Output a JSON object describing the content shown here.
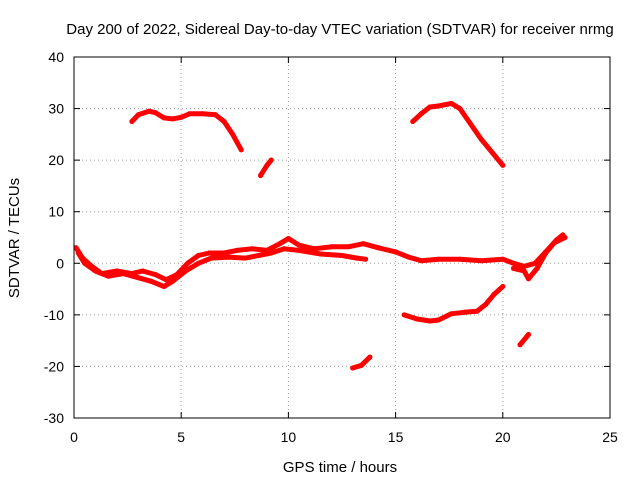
{
  "chart_data": {
    "type": "scatter",
    "title": "Day 200 of 2022, Sidereal Day-to-day VTEC variation (SDTVAR) for receiver nrmg",
    "xlabel": "GPS time / hours",
    "ylabel": "SDTVAR / TECUs",
    "xlim": [
      0,
      25
    ],
    "ylim": [
      -30,
      40
    ],
    "xticks": [
      0,
      5,
      10,
      15,
      20,
      25
    ],
    "yticks": [
      -30,
      -20,
      -10,
      0,
      10,
      20,
      30,
      40
    ],
    "grid": true,
    "color": "#ff0000",
    "series": [
      {
        "name": "arc-upper-early",
        "points": [
          [
            2.7,
            27.5
          ],
          [
            3.0,
            28.8
          ],
          [
            3.5,
            29.5
          ],
          [
            3.8,
            29.2
          ],
          [
            4.2,
            28.2
          ],
          [
            4.6,
            28.0
          ],
          [
            5.0,
            28.3
          ],
          [
            5.4,
            29.0
          ],
          [
            6.0,
            29.0
          ],
          [
            6.6,
            28.8
          ],
          [
            7.0,
            27.5
          ],
          [
            7.4,
            25.0
          ],
          [
            7.8,
            22.0
          ]
        ]
      },
      {
        "name": "arc-upper-early-b",
        "points": [
          [
            8.7,
            17.0
          ],
          [
            9.0,
            19.0
          ],
          [
            9.2,
            20.0
          ]
        ]
      },
      {
        "name": "arc-upper-late",
        "points": [
          [
            15.8,
            27.5
          ],
          [
            16.2,
            29.0
          ],
          [
            16.6,
            30.3
          ],
          [
            17.0,
            30.5
          ],
          [
            17.6,
            31.0
          ],
          [
            18.0,
            30.0
          ],
          [
            18.5,
            27.0
          ],
          [
            19.0,
            24.0
          ],
          [
            19.5,
            21.5
          ],
          [
            20.0,
            19.0
          ]
        ]
      },
      {
        "name": "arc-near-zero-a",
        "points": [
          [
            0.1,
            3.0
          ],
          [
            0.4,
            1.0
          ],
          [
            0.8,
            -0.5
          ],
          [
            1.3,
            -2.0
          ],
          [
            2.0,
            -1.5
          ],
          [
            2.7,
            -2.0
          ],
          [
            3.2,
            -1.5
          ],
          [
            3.8,
            -2.2
          ],
          [
            4.3,
            -3.2
          ],
          [
            4.8,
            -2.2
          ],
          [
            5.3,
            0.0
          ],
          [
            5.8,
            1.5
          ],
          [
            6.3,
            2.0
          ],
          [
            7.0,
            2.0
          ],
          [
            7.6,
            2.5
          ],
          [
            8.3,
            2.8
          ],
          [
            9.0,
            2.5
          ],
          [
            9.6,
            3.8
          ],
          [
            10.0,
            4.8
          ],
          [
            10.5,
            3.5
          ],
          [
            11.2,
            2.8
          ],
          [
            12.0,
            3.2
          ],
          [
            12.8,
            3.2
          ],
          [
            13.5,
            3.8
          ],
          [
            14.2,
            3.0
          ],
          [
            15.0,
            2.2
          ],
          [
            15.6,
            1.2
          ],
          [
            16.2,
            0.5
          ],
          [
            17.0,
            0.8
          ],
          [
            18.0,
            0.8
          ],
          [
            19.0,
            0.5
          ],
          [
            20.0,
            0.8
          ],
          [
            20.5,
            0.0
          ],
          [
            21.0,
            -0.6
          ],
          [
            21.5,
            0.0
          ],
          [
            22.0,
            2.2
          ],
          [
            22.5,
            4.5
          ],
          [
            22.8,
            5.5
          ]
        ]
      },
      {
        "name": "arc-near-zero-b",
        "points": [
          [
            0.2,
            2.0
          ],
          [
            0.5,
            0.0
          ],
          [
            1.0,
            -1.5
          ],
          [
            1.6,
            -2.5
          ],
          [
            2.3,
            -2.0
          ],
          [
            3.0,
            -2.8
          ],
          [
            3.6,
            -3.5
          ],
          [
            4.2,
            -4.5
          ],
          [
            4.6,
            -3.5
          ],
          [
            5.2,
            -1.5
          ],
          [
            5.8,
            0.0
          ],
          [
            6.4,
            1.0
          ],
          [
            7.2,
            1.2
          ],
          [
            8.0,
            1.0
          ],
          [
            8.6,
            1.5
          ],
          [
            9.2,
            2.0
          ],
          [
            9.8,
            2.8
          ],
          [
            10.5,
            2.5
          ],
          [
            11.5,
            1.8
          ],
          [
            12.5,
            1.5
          ],
          [
            13.2,
            1.0
          ],
          [
            13.6,
            0.8
          ]
        ]
      },
      {
        "name": "arc-near-zero-c",
        "points": [
          [
            20.5,
            -1.0
          ],
          [
            21.0,
            -1.5
          ],
          [
            21.2,
            -3.0
          ],
          [
            21.6,
            -1.0
          ],
          [
            22.0,
            2.0
          ],
          [
            22.4,
            4.0
          ],
          [
            22.9,
            5.0
          ]
        ]
      },
      {
        "name": "arc-lower-a",
        "points": [
          [
            15.4,
            -10.0
          ],
          [
            16.0,
            -10.8
          ],
          [
            16.6,
            -11.2
          ],
          [
            17.0,
            -11.0
          ],
          [
            17.6,
            -9.8
          ],
          [
            18.2,
            -9.5
          ],
          [
            18.8,
            -9.3
          ],
          [
            19.2,
            -8.0
          ],
          [
            19.6,
            -6.0
          ],
          [
            20.0,
            -4.5
          ]
        ]
      },
      {
        "name": "arc-lower-b",
        "points": [
          [
            20.8,
            -15.8
          ],
          [
            21.2,
            -13.8
          ]
        ]
      },
      {
        "name": "arc-lower-c",
        "points": [
          [
            13.0,
            -20.3
          ],
          [
            13.4,
            -19.8
          ],
          [
            13.8,
            -18.2
          ]
        ]
      }
    ]
  }
}
